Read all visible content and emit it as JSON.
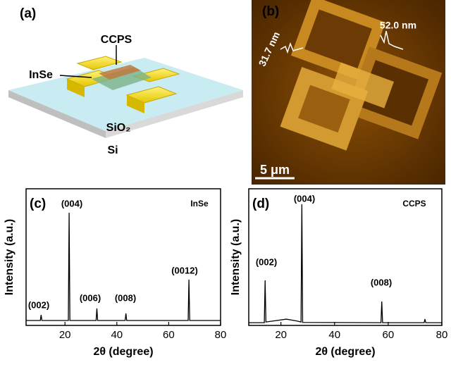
{
  "schematic": {
    "panel_label": "(a)",
    "labels": [
      "CCPS",
      "InSe",
      "SiO₂",
      "Si"
    ]
  },
  "afm": {
    "panel_label": "(b)",
    "heights": [
      "31.7 nm",
      "52.0 nm"
    ],
    "scale_bar": "5 μm"
  },
  "chart_data": [
    {
      "type": "line",
      "panel_label": "(c)",
      "sample": "InSe",
      "xlabel": "2θ (degree)",
      "ylabel": "Intensity (a.u.)",
      "x": [
        5,
        10.5,
        10.8,
        11.1,
        21.3,
        21.6,
        21.9,
        32.0,
        32.3,
        32.6,
        43.2,
        43.5,
        43.8,
        67.5,
        67.8,
        68.1,
        80
      ],
      "values": [
        3.6,
        3.6,
        7.7,
        3.6,
        3.6,
        82.5,
        3.6,
        3.6,
        12.4,
        3.6,
        3.6,
        8.8,
        3.6,
        3.6,
        33.5,
        3.6,
        3.6
      ],
      "color": "#000000",
      "annotations": [
        "(002)",
        "(004)",
        "(006)",
        "(008)",
        "(0012)"
      ],
      "xlim": [
        5,
        80
      ],
      "xticks": [
        20,
        40,
        60,
        80
      ],
      "ylim": [
        0,
        100
      ]
    },
    {
      "type": "line",
      "panel_label": "(d)",
      "sample": "CCPS",
      "xlabel": "2θ (degree)",
      "ylabel": "Intensity (a.u.)",
      "x": [
        8,
        13.8,
        14.1,
        14.4,
        18,
        22,
        26,
        27.5,
        27.8,
        28.1,
        57.3,
        57.6,
        57.9,
        73.4,
        73.7,
        74.0,
        80
      ],
      "values": [
        2,
        2,
        33,
        2.5,
        3.5,
        4.6,
        3.2,
        2.5,
        88.7,
        2.2,
        2,
        17.5,
        2,
        2,
        4.6,
        2,
        2
      ],
      "color": "#000000",
      "annotations": [
        "(002)",
        "(004)",
        "(008)"
      ],
      "xlim": [
        8,
        80
      ],
      "xticks": [
        20,
        40,
        60,
        80
      ],
      "ylim": [
        0,
        100
      ]
    }
  ]
}
